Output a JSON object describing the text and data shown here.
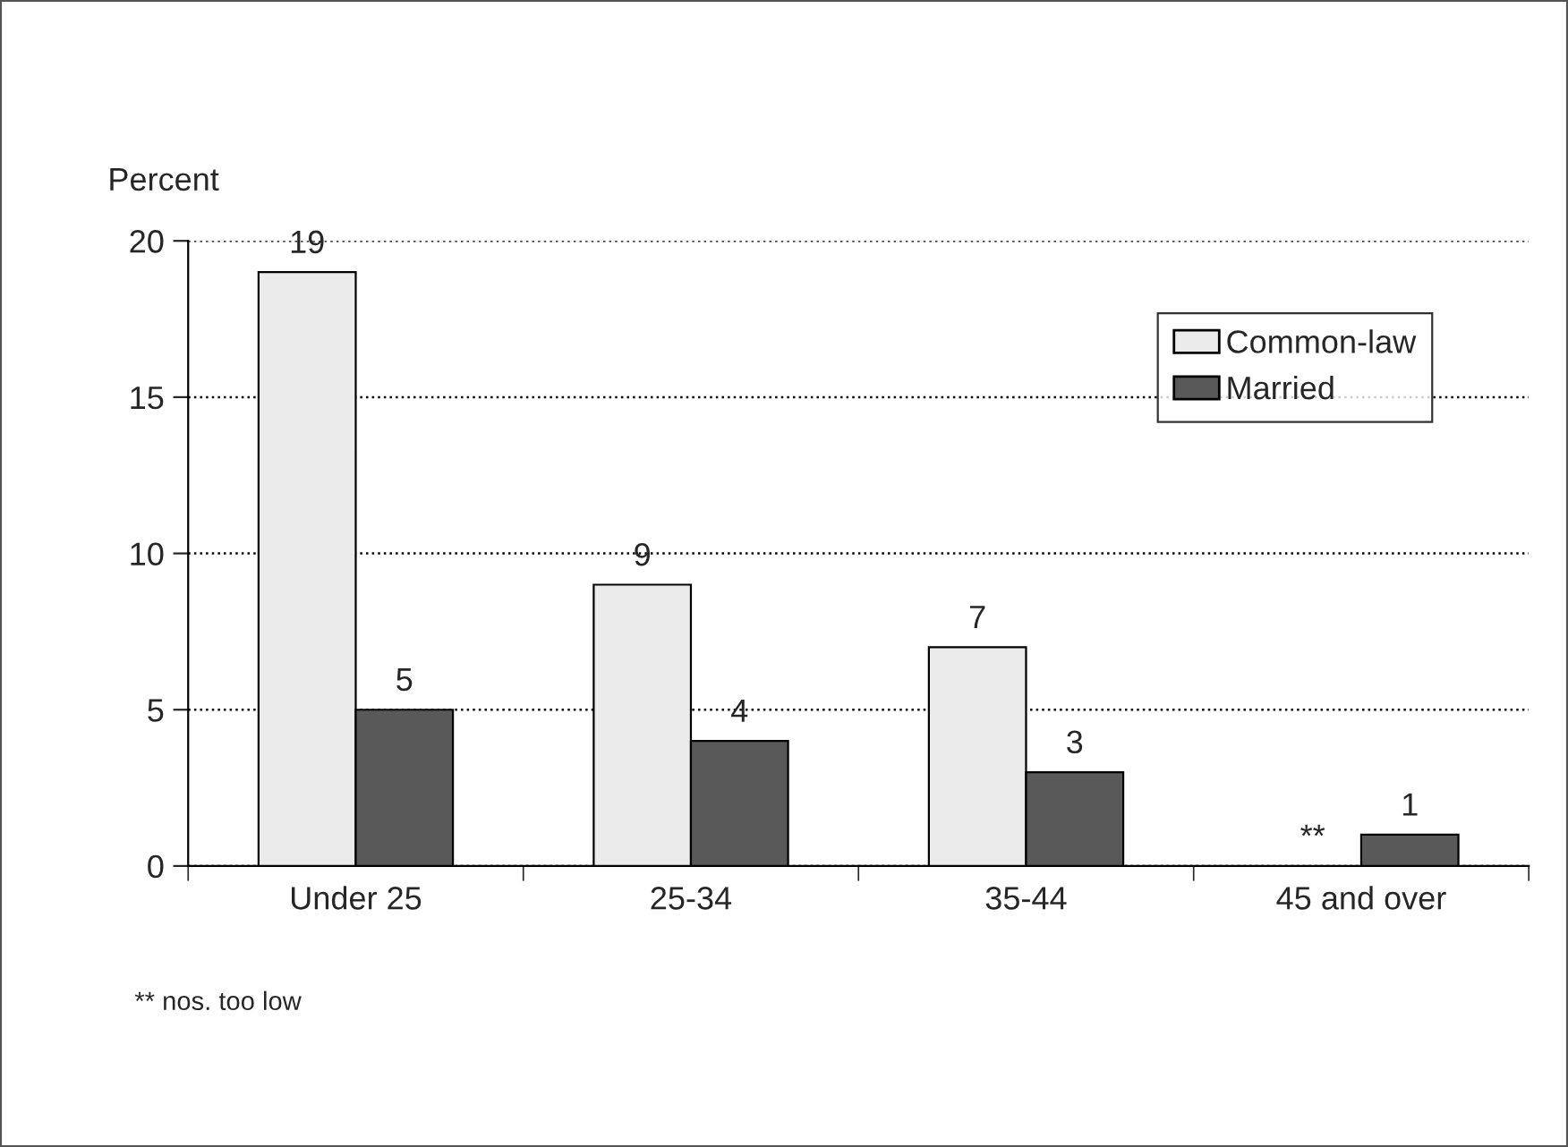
{
  "chart_data": {
    "type": "bar",
    "ylabel": "Percent",
    "categories": [
      "Under 25",
      "25-34",
      "35-44",
      "45 and over"
    ],
    "series": [
      {
        "name": "Common-law",
        "color": "#ebebeb",
        "values": [
          19,
          9,
          7,
          null
        ],
        "value_labels": [
          "19",
          "9",
          "7",
          "**"
        ]
      },
      {
        "name": "Married",
        "color": "#595959",
        "values": [
          5,
          4,
          3,
          1
        ],
        "value_labels": [
          "5",
          "4",
          "3",
          "1"
        ]
      }
    ],
    "ylim": [
      0,
      20
    ],
    "yticks": [
      0,
      5,
      10,
      15,
      20
    ],
    "grid": "y",
    "legend": "top right",
    "annotations": [
      "** nos. too low"
    ]
  }
}
